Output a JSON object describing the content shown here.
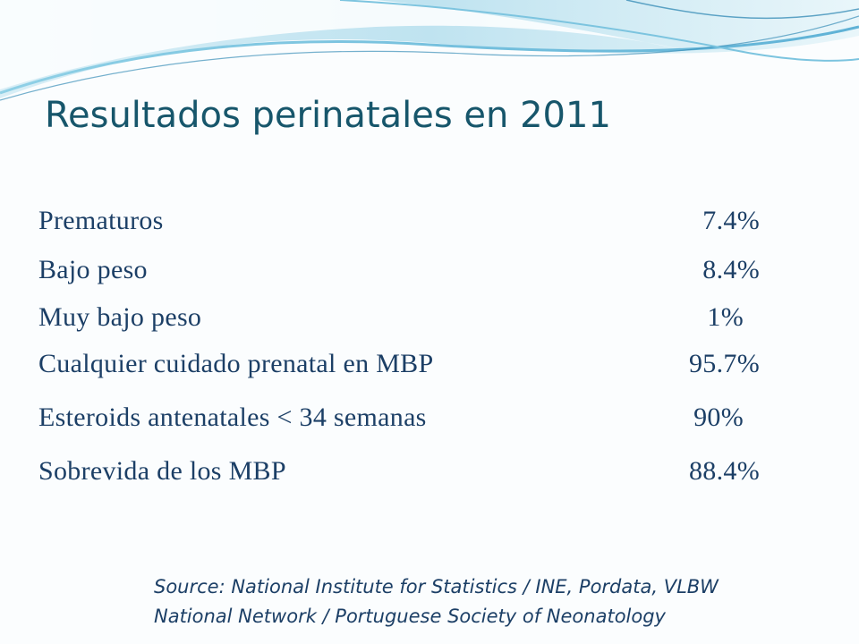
{
  "slide": {
    "title": "Resultados perinatales en 2011",
    "stats": [
      {
        "label": "Prematuros",
        "value": "7.4%"
      },
      {
        "label": "Bajo peso",
        "value": "8.4%"
      },
      {
        "label": "Muy bajo peso",
        "value": "1%"
      },
      {
        "label": "Cualquier cuidado prenatal en MBP",
        "value": "95.7%"
      },
      {
        "label": "Esteroids antenatales < 34 semanas",
        "value": "90%"
      },
      {
        "label": "Sobrevida de los MBP",
        "value": "88.4%"
      }
    ],
    "source": {
      "line1": "Source: National Institute for Statistics / INE, Pordata, VLBW",
      "line2": "National Network / Portuguese Society of Neonatology"
    }
  },
  "colors": {
    "title": "#17566b",
    "text": "#1c3f66",
    "wave_light": "#bfe3f0",
    "wave_mid": "#7cc4df",
    "wave_dark": "#3b8fb8"
  }
}
